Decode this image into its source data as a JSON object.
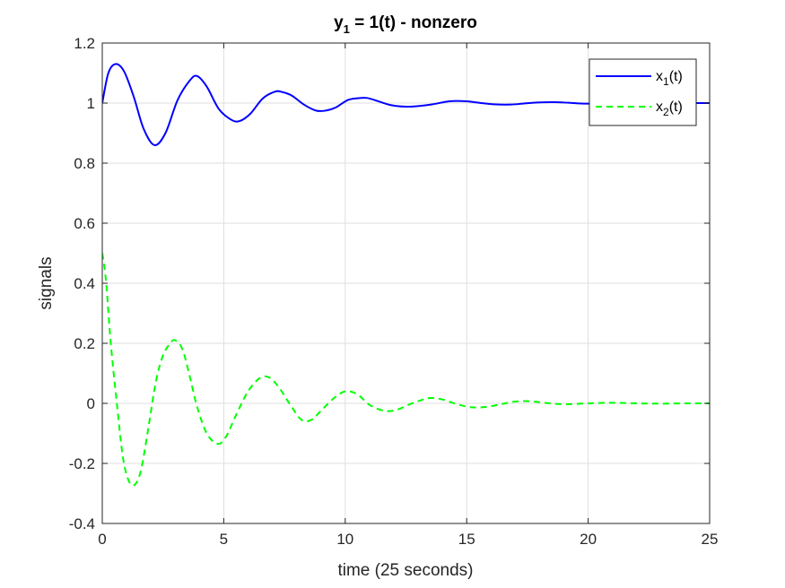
{
  "chart_data": {
    "type": "line",
    "title_main": "y",
    "title_sub": "1",
    "title_rest": " = 1(t) - nonzero",
    "xlabel": "time (25 seconds)",
    "ylabel": "signals",
    "xlim": [
      0,
      25
    ],
    "ylim": [
      -0.4,
      1.2
    ],
    "xticks": [
      0,
      5,
      10,
      15,
      20,
      25
    ],
    "xtick_labels": [
      "0",
      "5",
      "10",
      "15",
      "20",
      "25"
    ],
    "yticks": [
      -0.4,
      -0.2,
      0,
      0.2,
      0.4,
      0.6,
      0.8,
      1,
      1.2
    ],
    "ytick_labels": [
      "-0.4",
      "-0.2",
      "0",
      "0.2",
      "0.4",
      "0.6",
      "0.8",
      "1",
      "1.2"
    ],
    "grid": true,
    "legend_position": "top-right",
    "series": [
      {
        "label_main": "x",
        "label_sub": "1",
        "label_rest": "(t)",
        "color": "#0000ff",
        "style": "solid",
        "x": [
          0,
          0.25,
          0.55,
          0.9,
          1.3,
          1.7,
          2.15,
          2.6,
          3.1,
          3.6,
          3.9,
          4.3,
          4.8,
          5.3,
          5.65,
          6.1,
          6.6,
          7.1,
          7.4,
          7.8,
          8.3,
          8.8,
          9.2,
          9.6,
          10.1,
          10.5,
          10.9,
          11.4,
          11.9,
          12.5,
          13.0,
          13.6,
          14.3,
          15.0,
          15.5,
          16.1,
          16.8,
          17.3,
          17.9,
          18.6,
          19.2,
          19.9,
          20.5,
          21.2,
          22.0,
          23.0,
          24.0,
          25.0
        ],
        "y": [
          1.0,
          1.1,
          1.13,
          1.105,
          1.02,
          0.915,
          0.86,
          0.9,
          1.01,
          1.075,
          1.09,
          1.055,
          0.98,
          0.945,
          0.94,
          0.965,
          1.015,
          1.038,
          1.037,
          1.025,
          0.995,
          0.975,
          0.975,
          0.985,
          1.01,
          1.016,
          1.017,
          1.005,
          0.993,
          0.988,
          0.99,
          0.996,
          1.006,
          1.006,
          1.001,
          0.996,
          0.995,
          0.998,
          1.002,
          1.003,
          1.001,
          0.998,
          0.999,
          1.0,
          1.001,
          1.0,
          1.0,
          1.0
        ]
      },
      {
        "label_main": "x",
        "label_sub": "2",
        "label_rest": "(t)",
        "color": "#00ff00",
        "style": "dashed",
        "x": [
          0,
          0.15,
          0.35,
          0.6,
          0.85,
          1.1,
          1.35,
          1.6,
          1.9,
          2.2,
          2.5,
          2.8,
          3.0,
          3.3,
          3.6,
          3.9,
          4.3,
          4.75,
          5.1,
          5.5,
          6.0,
          6.5,
          6.9,
          7.3,
          7.7,
          8.2,
          8.6,
          9.0,
          9.5,
          10.0,
          10.5,
          11.0,
          11.6,
          12.1,
          12.6,
          13.1,
          13.5,
          14.0,
          14.6,
          15.2,
          15.8,
          16.4,
          17.0,
          17.6,
          18.2,
          19.0,
          20.0,
          21.0,
          22.0,
          23.0,
          24.0,
          25.0
        ],
        "y": [
          0.5,
          0.41,
          0.2,
          0.0,
          -0.18,
          -0.26,
          -0.27,
          -0.22,
          -0.08,
          0.07,
          0.16,
          0.2,
          0.21,
          0.18,
          0.09,
          -0.01,
          -0.1,
          -0.135,
          -0.11,
          -0.04,
          0.04,
          0.085,
          0.085,
          0.05,
          0.0,
          -0.055,
          -0.055,
          -0.025,
          0.015,
          0.04,
          0.03,
          -0.005,
          -0.025,
          -0.022,
          -0.005,
          0.01,
          0.018,
          0.013,
          -0.003,
          -0.013,
          -0.012,
          -0.003,
          0.006,
          0.007,
          0.002,
          -0.003,
          0.0,
          0.002,
          0.0,
          -0.001,
          0.0,
          0.0
        ]
      }
    ]
  }
}
